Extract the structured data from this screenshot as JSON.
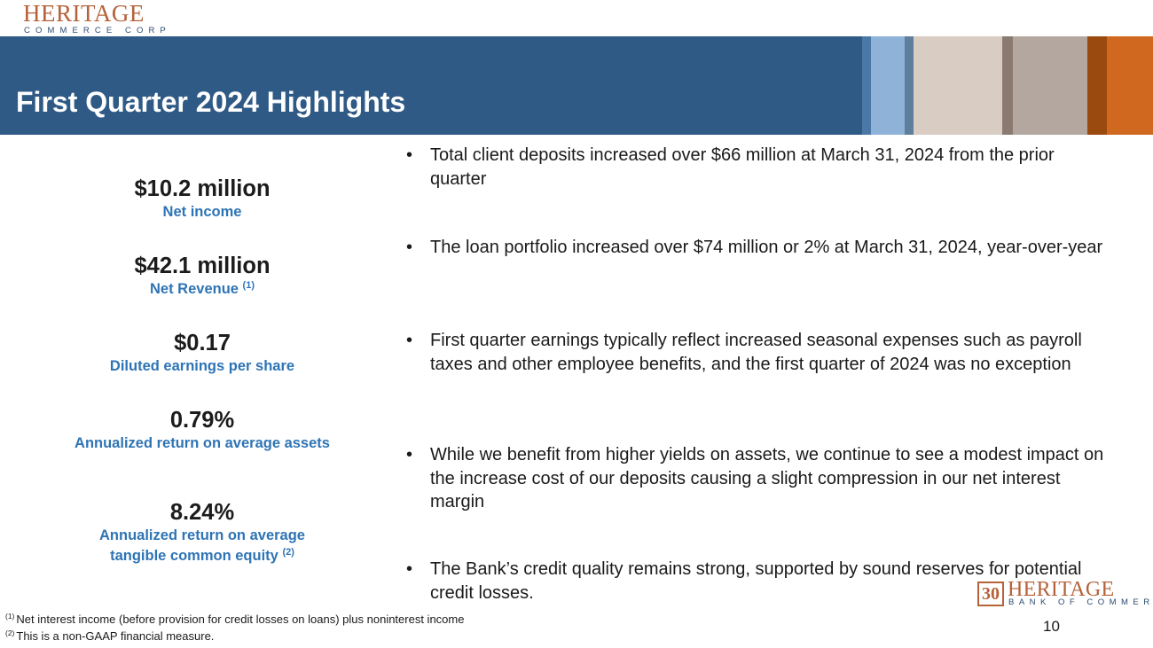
{
  "header": {
    "logo_name": "HERITAGE",
    "logo_sub": "COMMERCE CORP",
    "title": "First Quarter 2024 Highlights"
  },
  "stats": [
    {
      "value": "$10.2 million",
      "label": "Net income",
      "note": ""
    },
    {
      "value": "$42.1 million",
      "label": "Net Revenue",
      "note": "(1)"
    },
    {
      "value": "$0.17",
      "label": "Diluted earnings per share",
      "note": ""
    },
    {
      "value": "0.79%",
      "label": "Annualized return on average assets",
      "note": ""
    },
    {
      "value": "8.24%",
      "label": "Annualized return on average tangible common equity",
      "note": "(2)"
    }
  ],
  "bullets": [
    "Total client deposits increased over $66 million at March 31, 2024 from the prior quarter",
    "The loan portfolio increased over $74 million or 2% at March 31, 2024, year-over-year",
    "First quarter earnings typically reflect increased seasonal expenses such as payroll taxes and other employee benefits, and the first quarter of 2024 was no exception",
    "While we benefit from higher yields on assets, we continue to see a modest impact on the increase cost of our deposits causing a slight compression in our net interest margin",
    "The Bank’s credit quality remains strong, supported by sound reserves for potential credit losses."
  ],
  "bullet_marker": "•",
  "footnotes": [
    {
      "mark": "(1)",
      "text": "Net interest income (before provision for credit losses on loans) plus noninterest income"
    },
    {
      "mark": "(2)",
      "text": "This is a non-GAAP financial measure."
    }
  ],
  "page_number": "10",
  "bottom_logo": {
    "badge": "30",
    "name": "HERITAGE",
    "sub": "BANK OF COMMERCE"
  },
  "colors": {
    "banner": "#2f5a86",
    "accent_blue": "#2e74b5",
    "brand_copper": "#b5623a"
  }
}
